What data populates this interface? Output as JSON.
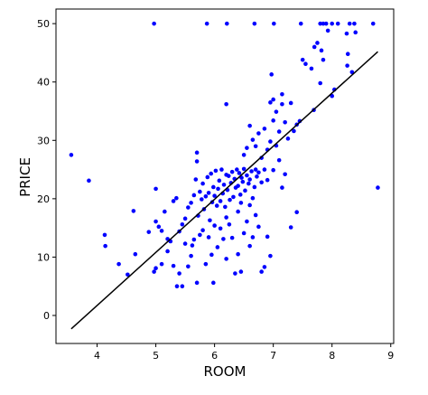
{
  "chart_data": {
    "type": "scatter",
    "xlabel": "ROOM",
    "ylabel": "PRICE",
    "xlim": [
      3.3,
      9.05
    ],
    "ylim": [
      -4.8,
      52.5
    ],
    "xticks": [
      4,
      5,
      6,
      7,
      8,
      9
    ],
    "yticks": [
      0,
      10,
      20,
      30,
      40,
      50
    ],
    "series": [
      {
        "type": "scatter",
        "color": "#0000ff",
        "x": [
          3.56,
          3.86,
          4.13,
          4.14,
          4.37,
          4.52,
          4.62,
          4.65,
          4.88,
          8.78,
          4.97,
          5.87,
          6.21,
          6.68,
          7.01,
          7.47,
          7.8,
          7.9,
          8.0,
          8.1,
          8.38,
          8.7,
          8.3,
          7.85,
          7.5,
          7.55,
          7.65,
          7.7,
          7.75,
          7.82,
          7.85,
          7.93,
          8.25,
          8.27,
          8.26,
          8.34,
          8.4,
          8.04,
          8.0,
          7.8,
          7.69,
          6.97,
          6.2,
          5.0,
          5.0,
          5.05,
          5.1,
          5.15,
          5.2,
          5.25,
          5.3,
          5.35,
          5.4,
          5.45,
          5.5,
          5.55,
          5.6,
          5.62,
          5.65,
          5.68,
          5.7,
          5.7,
          5.72,
          5.75,
          5.78,
          5.8,
          5.82,
          5.85,
          5.88,
          5.9,
          5.92,
          5.94,
          5.96,
          5.98,
          6.0,
          6.02,
          6.04,
          6.06,
          6.08,
          6.1,
          6.12,
          6.14,
          6.16,
          6.18,
          6.2,
          6.22,
          6.24,
          6.26,
          6.28,
          6.3,
          6.32,
          6.34,
          6.36,
          6.38,
          6.4,
          6.42,
          6.44,
          6.46,
          6.48,
          6.5,
          6.52,
          6.55,
          6.58,
          6.6,
          6.63,
          6.65,
          6.68,
          6.7,
          6.72,
          6.75,
          6.8,
          6.85,
          6.9,
          5.3,
          5.4,
          5.45,
          5.55,
          5.6,
          5.7,
          5.75,
          5.85,
          5.9,
          5.95,
          5.98,
          6.05,
          6.1,
          6.15,
          6.2,
          6.25,
          6.3,
          6.35,
          6.4,
          6.45,
          6.5,
          6.55,
          6.6,
          6.65,
          6.7,
          6.75,
          6.8,
          6.85,
          6.9,
          6.95,
          5.0,
          5.1,
          4.97,
          5.2,
          5.36,
          5.5,
          5.65,
          5.8,
          6.0,
          6.2,
          6.4,
          6.6,
          6.45,
          6.5,
          6.55,
          6.6,
          6.65,
          6.7,
          6.75,
          6.8,
          6.85,
          6.9,
          6.95,
          7.0,
          7.0,
          7.05,
          7.1,
          7.15,
          7.15,
          7.2,
          7.25,
          7.3,
          7.35,
          7.4,
          7.45,
          7.05,
          6.95,
          7.1,
          7.3,
          7.4,
          7.0,
          7.15,
          7.2
        ],
        "values": [
          27.5,
          23.1,
          13.8,
          11.9,
          8.8,
          7.0,
          17.9,
          10.5,
          14.3,
          21.9,
          50,
          50,
          50,
          50,
          50,
          50,
          50,
          50,
          50,
          50,
          50,
          50,
          50,
          50,
          43.8,
          43.1,
          42.3,
          46,
          46.7,
          45.4,
          43.8,
          48.8,
          48.3,
          44.8,
          42.8,
          41.7,
          48.5,
          38.7,
          37.6,
          39.8,
          35.2,
          41.3,
          36.2,
          21.7,
          16.1,
          15.2,
          14.5,
          17.8,
          13.1,
          12.7,
          19.6,
          20.1,
          14.4,
          15.6,
          16.6,
          18.5,
          19.3,
          12.0,
          20.6,
          23.3,
          27.9,
          26.4,
          17.1,
          21.2,
          19.9,
          22.6,
          18.2,
          20.4,
          23.7,
          21.0,
          16.3,
          24.3,
          19.4,
          22.0,
          20.5,
          24.8,
          18.8,
          21.7,
          23.1,
          19.6,
          25.0,
          20.9,
          22.4,
          18.6,
          24.1,
          21.5,
          23.9,
          19.8,
          22.7,
          24.6,
          20.3,
          23.4,
          21.9,
          25.0,
          22.2,
          24.4,
          20.7,
          23.6,
          22.9,
          25.1,
          21.4,
          24.0,
          22.6,
          23.3,
          24.7,
          20.1,
          22.0,
          25.0,
          23.8,
          24.5,
          22.8,
          25.0,
          23.2,
          8.5,
          7.2,
          5.0,
          8.4,
          10.2,
          5.6,
          13.8,
          8.8,
          13.4,
          10.4,
          5.6,
          11.7,
          14.9,
          13.1,
          9.7,
          15.6,
          13.3,
          7.2,
          10.5,
          7.5,
          14.1,
          16.1,
          11.9,
          13.4,
          17.2,
          15.2,
          7.5,
          8.3,
          13.5,
          10.2,
          8.1,
          8.8,
          7.5,
          11.0,
          5.0,
          12.3,
          13.0,
          14.6,
          15.4,
          16.8,
          17.8,
          18.9,
          19.3,
          27.5,
          28.7,
          32.5,
          30.1,
          29.0,
          31.2,
          27.0,
          32.0,
          28.4,
          29.8,
          33.4,
          37.0,
          34.9,
          31.5,
          36.2,
          37.9,
          33.1,
          30.3,
          36.4,
          31.6,
          32.7,
          33.3,
          29.1,
          36.5,
          26.6,
          15.1,
          17.7,
          24.9,
          21.9,
          24.2
        ]
      },
      {
        "type": "line",
        "color": "#000000",
        "x": [
          3.56,
          8.78
        ],
        "values": [
          -2.3,
          45.2
        ]
      }
    ]
  }
}
